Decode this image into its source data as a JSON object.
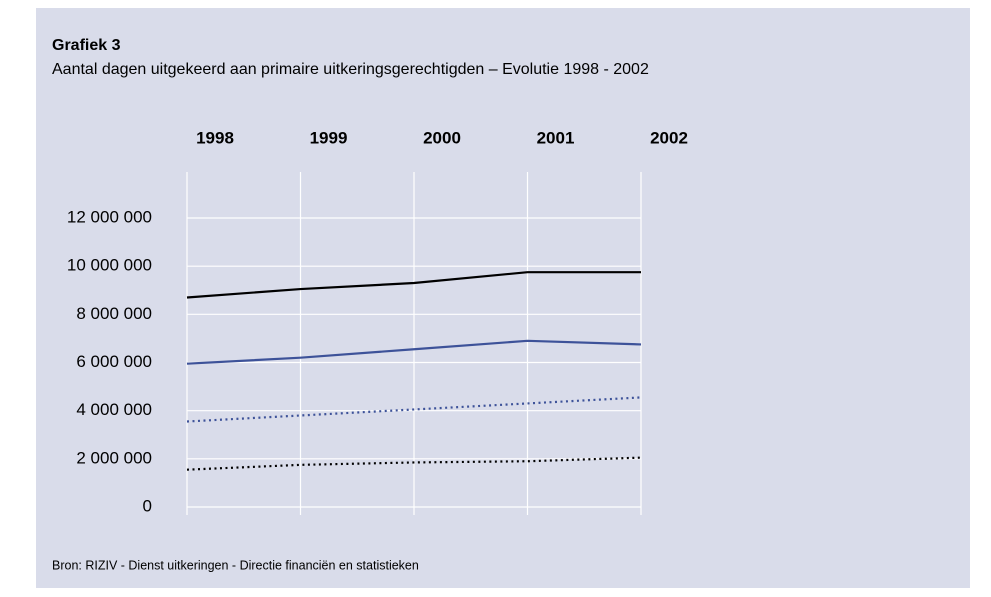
{
  "chart_data": {
    "type": "line",
    "title": "Grafiek 3",
    "subtitle": "Aantal dagen uitgekeerd aan primaire uitkeringsgerechtigden – Evolutie 1998 - 2002",
    "source": "Bron: RIZIV - Dienst uitkeringen - Directie financiën en statistieken",
    "categories": [
      "1998",
      "1999",
      "2000",
      "2001",
      "2002"
    ],
    "series": [
      {
        "color": "#000000",
        "line_style": "solid",
        "values": [
          8700000,
          9050000,
          9300000,
          9750000,
          9750000
        ]
      },
      {
        "color": "#3d5299",
        "line_style": "solid",
        "values": [
          5950000,
          6200000,
          6550000,
          6900000,
          6750000
        ]
      },
      {
        "color": "#3d5299",
        "line_style": "dotted",
        "values": [
          3550000,
          3800000,
          4050000,
          4300000,
          4550000
        ]
      },
      {
        "color": "#000000",
        "line_style": "dotted",
        "values": [
          1550000,
          1750000,
          1850000,
          1900000,
          2050000
        ]
      }
    ],
    "ylim": [
      0,
      12000000
    ],
    "yticks": [
      0,
      {
        "value": 2000000,
        "label": "2 000 000"
      },
      {
        "value": 4000000,
        "label": "4 000 000"
      },
      {
        "value": 6000000,
        "label": "6 000 000"
      },
      {
        "value": 8000000,
        "label": "8 000 000"
      },
      {
        "value": 10000000,
        "label": "10 000 000"
      },
      {
        "value": 12000000,
        "label": "12 000 000"
      }
    ],
    "grid": true
  }
}
